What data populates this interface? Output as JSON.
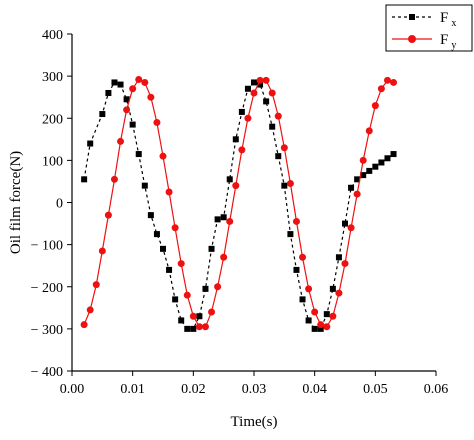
{
  "chart_data": {
    "type": "line",
    "xlabel": "Time(s)",
    "ylabel": "Oil film force(N)",
    "xlim": [
      0,
      0.06
    ],
    "ylim": [
      -400,
      400
    ],
    "x_ticks": [
      "0.00",
      "0.01",
      "0.02",
      "0.03",
      "0.04",
      "0.05",
      "0.06"
    ],
    "y_ticks": [
      "400",
      "300",
      "200",
      "100",
      "0",
      "− 100",
      "− 200",
      "− 300",
      "− 400"
    ],
    "grid": false,
    "legend_position": "top-right",
    "legend": [
      {
        "label_main": "F",
        "label_sub": "x"
      },
      {
        "label_main": "F",
        "label_sub": "y"
      }
    ],
    "series": [
      {
        "name": "Fx",
        "color": "#000000",
        "marker": "square",
        "line_style": "dashed",
        "x": [
          0.002,
          0.003,
          0.005,
          0.006,
          0.007,
          0.008,
          0.009,
          0.01,
          0.011,
          0.012,
          0.013,
          0.014,
          0.015,
          0.016,
          0.017,
          0.018,
          0.019,
          0.02,
          0.021,
          0.022,
          0.023,
          0.024,
          0.025,
          0.026,
          0.027,
          0.028,
          0.029,
          0.03,
          0.031,
          0.032,
          0.033,
          0.034,
          0.035,
          0.036,
          0.037,
          0.038,
          0.039,
          0.04,
          0.041,
          0.042,
          0.043,
          0.044,
          0.045,
          0.046,
          0.047,
          0.048,
          0.049,
          0.05,
          0.051,
          0.052,
          0.053
        ],
        "y": [
          55,
          140,
          210,
          260,
          285,
          280,
          245,
          185,
          115,
          40,
          -30,
          -75,
          -110,
          -160,
          -230,
          -280,
          -300,
          -300,
          -270,
          -205,
          -110,
          -40,
          -35,
          55,
          150,
          215,
          270,
          285,
          280,
          240,
          180,
          110,
          40,
          -75,
          -160,
          -230,
          -280,
          -300,
          -300,
          -265,
          -205,
          -130,
          -50,
          35,
          55,
          65,
          75,
          85,
          95,
          105,
          115
        ]
      },
      {
        "name": "Fy",
        "color": "#ee1111",
        "marker": "circle",
        "line_style": "solid",
        "x": [
          0.002,
          0.003,
          0.004,
          0.005,
          0.006,
          0.007,
          0.008,
          0.009,
          0.01,
          0.011,
          0.012,
          0.013,
          0.014,
          0.015,
          0.016,
          0.017,
          0.018,
          0.019,
          0.02,
          0.021,
          0.022,
          0.023,
          0.024,
          0.025,
          0.026,
          0.027,
          0.028,
          0.029,
          0.03,
          0.031,
          0.032,
          0.033,
          0.034,
          0.035,
          0.036,
          0.037,
          0.038,
          0.039,
          0.04,
          0.041,
          0.042,
          0.043,
          0.044,
          0.045,
          0.046,
          0.047,
          0.048,
          0.049,
          0.05,
          0.051,
          0.052,
          0.053
        ],
        "y": [
          -290,
          -255,
          -195,
          -115,
          -30,
          55,
          145,
          220,
          270,
          292,
          285,
          250,
          190,
          110,
          25,
          -60,
          -145,
          -220,
          -270,
          -295,
          -295,
          -260,
          -200,
          -130,
          -45,
          40,
          125,
          200,
          260,
          290,
          290,
          260,
          205,
          130,
          45,
          -45,
          -130,
          -205,
          -260,
          -290,
          -295,
          -270,
          -215,
          -145,
          -60,
          20,
          100,
          170,
          230,
          270,
          290,
          285
        ]
      }
    ]
  }
}
